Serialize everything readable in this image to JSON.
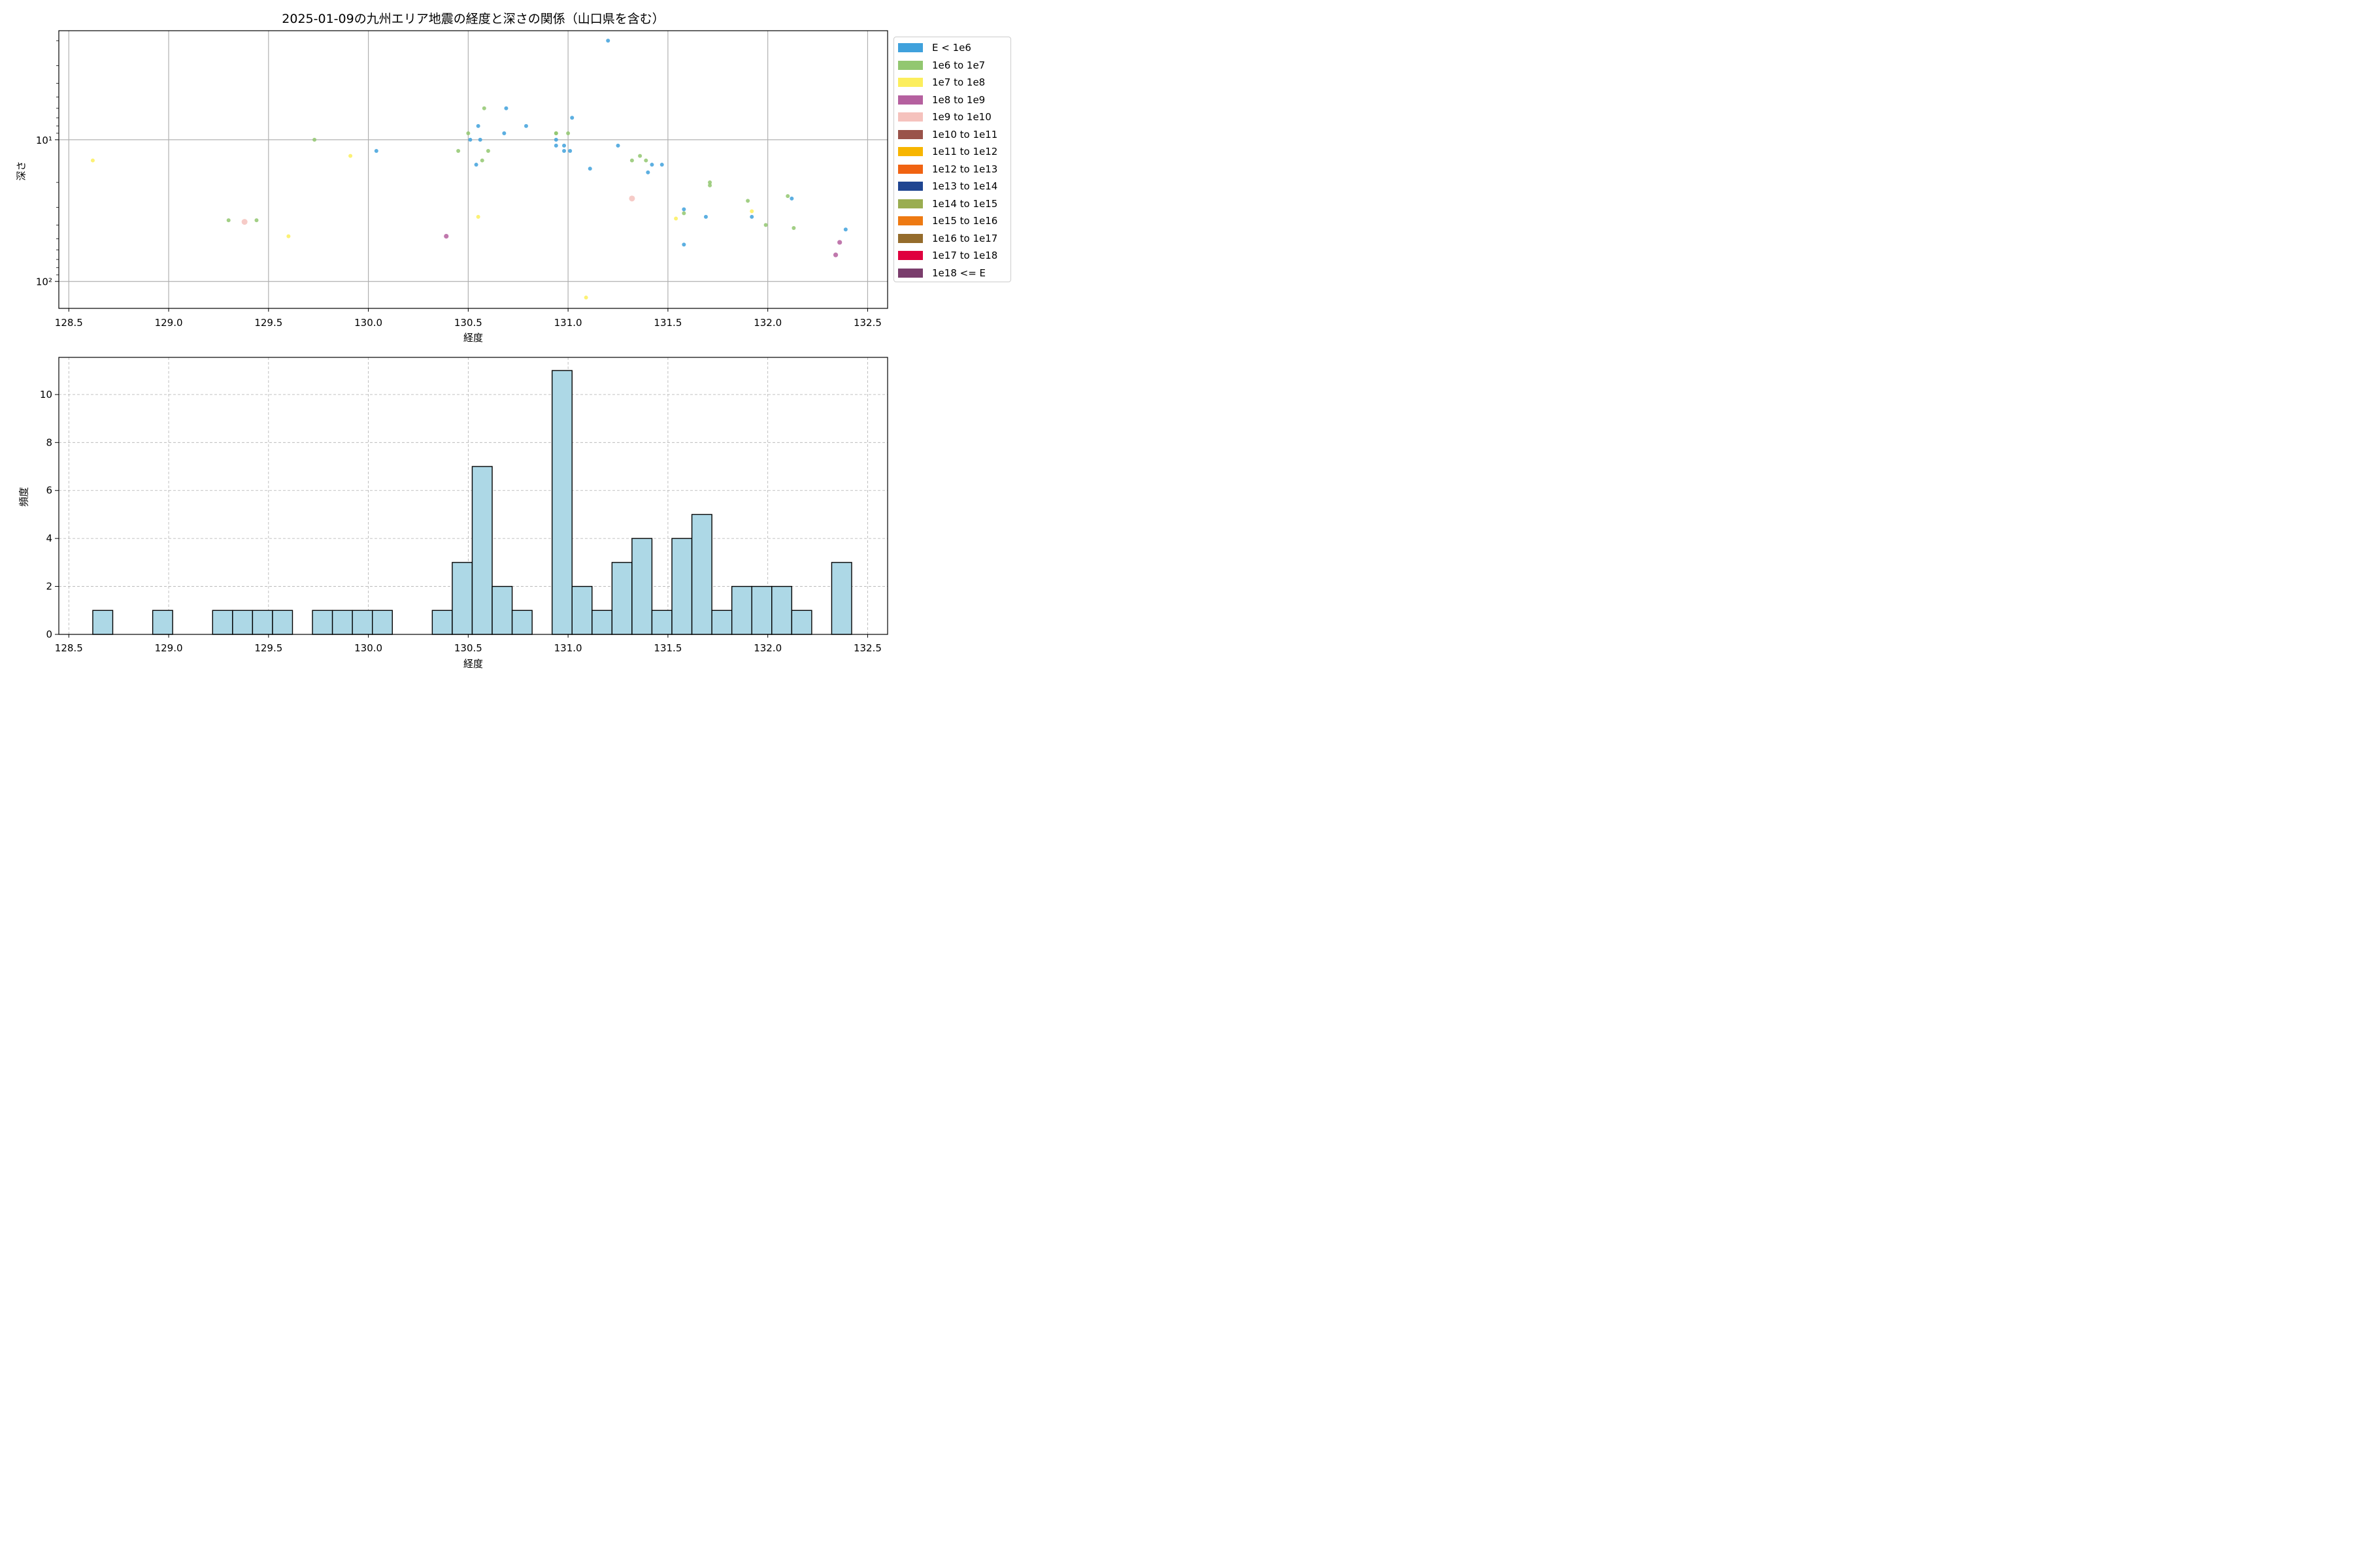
{
  "figure": {
    "title": "2025-01-09の九州エリア地震の経度と深さの関係（山口県を含む）"
  },
  "legend": [
    {
      "label": "E < 1e6",
      "color": "#3fa1dc"
    },
    {
      "label": "1e6 to 1e7",
      "color": "#92c770"
    },
    {
      "label": "1e7 to 1e8",
      "color": "#fcee5d"
    },
    {
      "label": "1e8 to 1e9",
      "color": "#b5609f"
    },
    {
      "label": "1e9 to 1e10",
      "color": "#f5c2bd"
    },
    {
      "label": "1e10 to 1e11",
      "color": "#9a534a"
    },
    {
      "label": "1e11 to 1e12",
      "color": "#f7b500"
    },
    {
      "label": "1e12 to 1e13",
      "color": "#f06312"
    },
    {
      "label": "1e13 to 1e14",
      "color": "#1f4591"
    },
    {
      "label": "1e14 to 1e15",
      "color": "#9aad50"
    },
    {
      "label": "1e15 to 1e16",
      "color": "#ee7a12"
    },
    {
      "label": "1e16 to 1e17",
      "color": "#956c2c"
    },
    {
      "label": "1e17 to 1e18",
      "color": "#df003e"
    },
    {
      "label": "1e18 <= E",
      "color": "#7a3d6c"
    }
  ],
  "chart_data": [
    {
      "type": "scatter",
      "xlabel": "経度",
      "ylabel": "深さ",
      "xlim": [
        128.45,
        132.6
      ],
      "ylim": [
        155,
        1.7
      ],
      "yscale": "log",
      "y_inverted": true,
      "grid": true,
      "legend_position": "outside right",
      "xticks": [
        "128.5",
        "129.0",
        "129.5",
        "130.0",
        "130.5",
        "131.0",
        "131.5",
        "132.0",
        "132.5"
      ],
      "yticks": [
        {
          "value": 10,
          "label": "10¹"
        },
        {
          "value": 100,
          "label": "10²"
        }
      ],
      "points": [
        {
          "x": 128.62,
          "y": 14,
          "cls": 2
        },
        {
          "x": 129.3,
          "y": 37,
          "cls": 1
        },
        {
          "x": 129.38,
          "y": 38,
          "cls": 4
        },
        {
          "x": 129.44,
          "y": 37,
          "cls": 1
        },
        {
          "x": 129.6,
          "y": 48,
          "cls": 2
        },
        {
          "x": 129.73,
          "y": 10,
          "cls": 1
        },
        {
          "x": 129.91,
          "y": 13,
          "cls": 2
        },
        {
          "x": 130.04,
          "y": 12,
          "cls": 0
        },
        {
          "x": 130.39,
          "y": 48,
          "cls": 3
        },
        {
          "x": 130.45,
          "y": 12,
          "cls": 1
        },
        {
          "x": 130.5,
          "y": 9,
          "cls": 1
        },
        {
          "x": 130.51,
          "y": 10,
          "cls": 0
        },
        {
          "x": 130.54,
          "y": 15,
          "cls": 0
        },
        {
          "x": 130.55,
          "y": 8,
          "cls": 0
        },
        {
          "x": 130.55,
          "y": 35,
          "cls": 2
        },
        {
          "x": 130.56,
          "y": 10,
          "cls": 0
        },
        {
          "x": 130.57,
          "y": 14,
          "cls": 1
        },
        {
          "x": 130.58,
          "y": 6,
          "cls": 1
        },
        {
          "x": 130.6,
          "y": 12,
          "cls": 1
        },
        {
          "x": 130.68,
          "y": 9,
          "cls": 0
        },
        {
          "x": 130.69,
          "y": 6,
          "cls": 0
        },
        {
          "x": 130.79,
          "y": 8,
          "cls": 0
        },
        {
          "x": 130.94,
          "y": 9,
          "cls": 1
        },
        {
          "x": 130.94,
          "y": 9,
          "cls": 1
        },
        {
          "x": 130.94,
          "y": 10,
          "cls": 0
        },
        {
          "x": 130.94,
          "y": 11,
          "cls": 0
        },
        {
          "x": 130.98,
          "y": 11,
          "cls": 0
        },
        {
          "x": 130.98,
          "y": 12,
          "cls": 0
        },
        {
          "x": 131.0,
          "y": 9,
          "cls": 1
        },
        {
          "x": 131.01,
          "y": 12,
          "cls": 0
        },
        {
          "x": 131.02,
          "y": 7,
          "cls": 0
        },
        {
          "x": 131.09,
          "y": 130,
          "cls": 2
        },
        {
          "x": 131.11,
          "y": 16,
          "cls": 0
        },
        {
          "x": 131.2,
          "y": 2,
          "cls": 0
        },
        {
          "x": 131.25,
          "y": 11,
          "cls": 0
        },
        {
          "x": 131.32,
          "y": 14,
          "cls": 1
        },
        {
          "x": 131.32,
          "y": 26,
          "cls": 4
        },
        {
          "x": 131.36,
          "y": 13,
          "cls": 1
        },
        {
          "x": 131.39,
          "y": 14,
          "cls": 1
        },
        {
          "x": 131.4,
          "y": 17,
          "cls": 0
        },
        {
          "x": 131.42,
          "y": 15,
          "cls": 0
        },
        {
          "x": 131.47,
          "y": 15,
          "cls": 0
        },
        {
          "x": 131.54,
          "y": 36,
          "cls": 2
        },
        {
          "x": 131.58,
          "y": 31,
          "cls": 0
        },
        {
          "x": 131.58,
          "y": 33,
          "cls": 1
        },
        {
          "x": 131.58,
          "y": 55,
          "cls": 0
        },
        {
          "x": 131.69,
          "y": 35,
          "cls": 0
        },
        {
          "x": 131.71,
          "y": 20,
          "cls": 1
        },
        {
          "x": 131.71,
          "y": 21,
          "cls": 1
        },
        {
          "x": 131.9,
          "y": 27,
          "cls": 1
        },
        {
          "x": 131.92,
          "y": 32,
          "cls": 2
        },
        {
          "x": 131.92,
          "y": 35,
          "cls": 0
        },
        {
          "x": 131.99,
          "y": 40,
          "cls": 1
        },
        {
          "x": 132.1,
          "y": 25,
          "cls": 1
        },
        {
          "x": 132.12,
          "y": 26,
          "cls": 0
        },
        {
          "x": 132.13,
          "y": 42,
          "cls": 1
        },
        {
          "x": 132.34,
          "y": 65,
          "cls": 3
        },
        {
          "x": 132.36,
          "y": 53,
          "cls": 3
        },
        {
          "x": 132.39,
          "y": 43,
          "cls": 0
        }
      ]
    },
    {
      "type": "bar",
      "subtype": "histogram",
      "xlabel": "経度",
      "ylabel": "頻度",
      "xlim": [
        128.45,
        132.6
      ],
      "ylim": [
        0,
        11.55
      ],
      "grid": true,
      "bar_color": "#add8e6",
      "xticks": [
        "128.5",
        "129.0",
        "129.5",
        "130.0",
        "130.5",
        "131.0",
        "131.5",
        "132.0",
        "132.5"
      ],
      "yticks": [
        "0",
        "2",
        "4",
        "6",
        "8",
        "10"
      ],
      "bin_edges": [
        128.62,
        128.72,
        128.82,
        128.92,
        129.02,
        129.12,
        129.22,
        129.32,
        129.42,
        129.52,
        129.62,
        129.72,
        129.82,
        129.92,
        130.02,
        130.12,
        130.22,
        130.32,
        130.42,
        130.52,
        130.62,
        130.72,
        130.82,
        130.92,
        131.02,
        131.12,
        131.22,
        131.32,
        131.42,
        131.52,
        131.62,
        131.72,
        131.82,
        131.92,
        132.02,
        132.12,
        132.22,
        132.32,
        132.42
      ],
      "counts": [
        1,
        0,
        0,
        1,
        0,
        0,
        1,
        1,
        1,
        1,
        0,
        1,
        1,
        1,
        1,
        0,
        0,
        1,
        3,
        7,
        2,
        1,
        0,
        11,
        2,
        1,
        3,
        4,
        1,
        4,
        5,
        1,
        2,
        2,
        2,
        1,
        0,
        3
      ]
    }
  ]
}
